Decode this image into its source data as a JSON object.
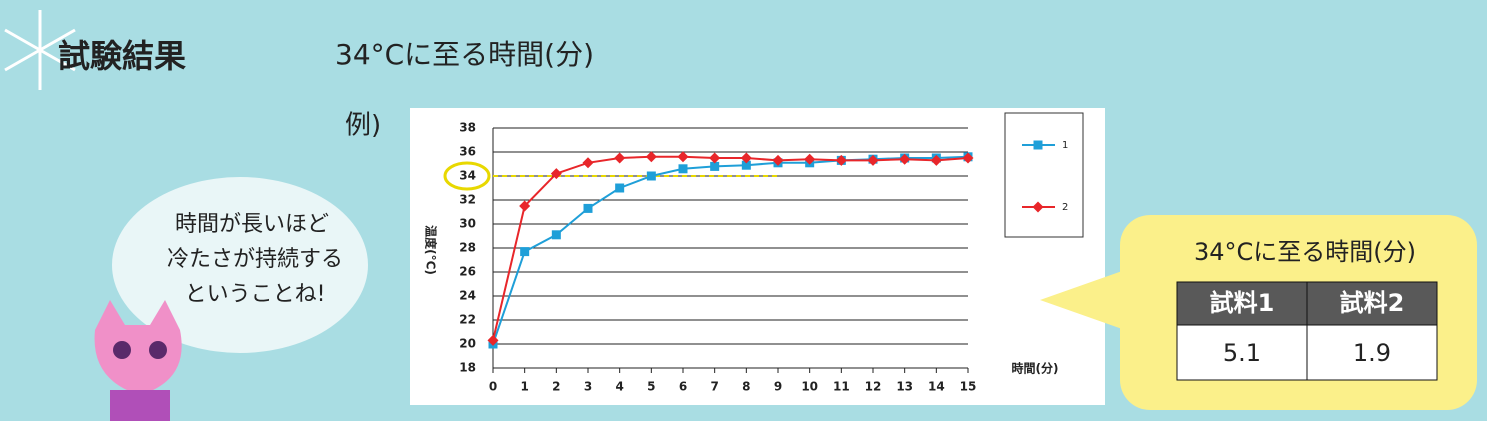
{
  "header": {
    "title": "試験結果",
    "subtitle": "34°Cに至る時間(分)",
    "example": "例)"
  },
  "bubble": {
    "lines": [
      "時間が長いほど",
      "冷たさが持続する",
      "ということね!"
    ]
  },
  "chart_data": {
    "type": "line",
    "y_label": "温度(°C)",
    "x_label": "時間(分)",
    "x": [
      0,
      1,
      2,
      3,
      4,
      5,
      6,
      7,
      8,
      9,
      10,
      11,
      12,
      13,
      14,
      15
    ],
    "xlim": [
      0,
      15
    ],
    "xticks": [
      0,
      1,
      2,
      3,
      4,
      5,
      6,
      7,
      8,
      9,
      10,
      11,
      12,
      13,
      14,
      15
    ],
    "ylim": [
      18,
      38
    ],
    "yticks": [
      18,
      20,
      22,
      24,
      26,
      28,
      30,
      32,
      34,
      36,
      38
    ],
    "grid": true,
    "threshold": 34,
    "series": [
      {
        "name": "1",
        "color": "#1f9fd8",
        "marker": "square",
        "values": [
          20.0,
          27.7,
          29.1,
          31.3,
          33.0,
          34.0,
          34.6,
          34.8,
          34.9,
          35.1,
          35.1,
          35.3,
          35.4,
          35.5,
          35.5,
          35.6
        ]
      },
      {
        "name": "2",
        "color": "#e8262a",
        "marker": "diamond",
        "values": [
          20.3,
          31.5,
          34.2,
          35.1,
          35.5,
          35.6,
          35.6,
          35.5,
          35.5,
          35.3,
          35.4,
          35.3,
          35.3,
          35.4,
          35.3,
          35.5
        ]
      }
    ]
  },
  "table": {
    "title": "34°Cに至る時間(分)",
    "headers": [
      "試料1",
      "試料2"
    ],
    "rows": [
      [
        "5.1",
        "1.9"
      ]
    ]
  }
}
